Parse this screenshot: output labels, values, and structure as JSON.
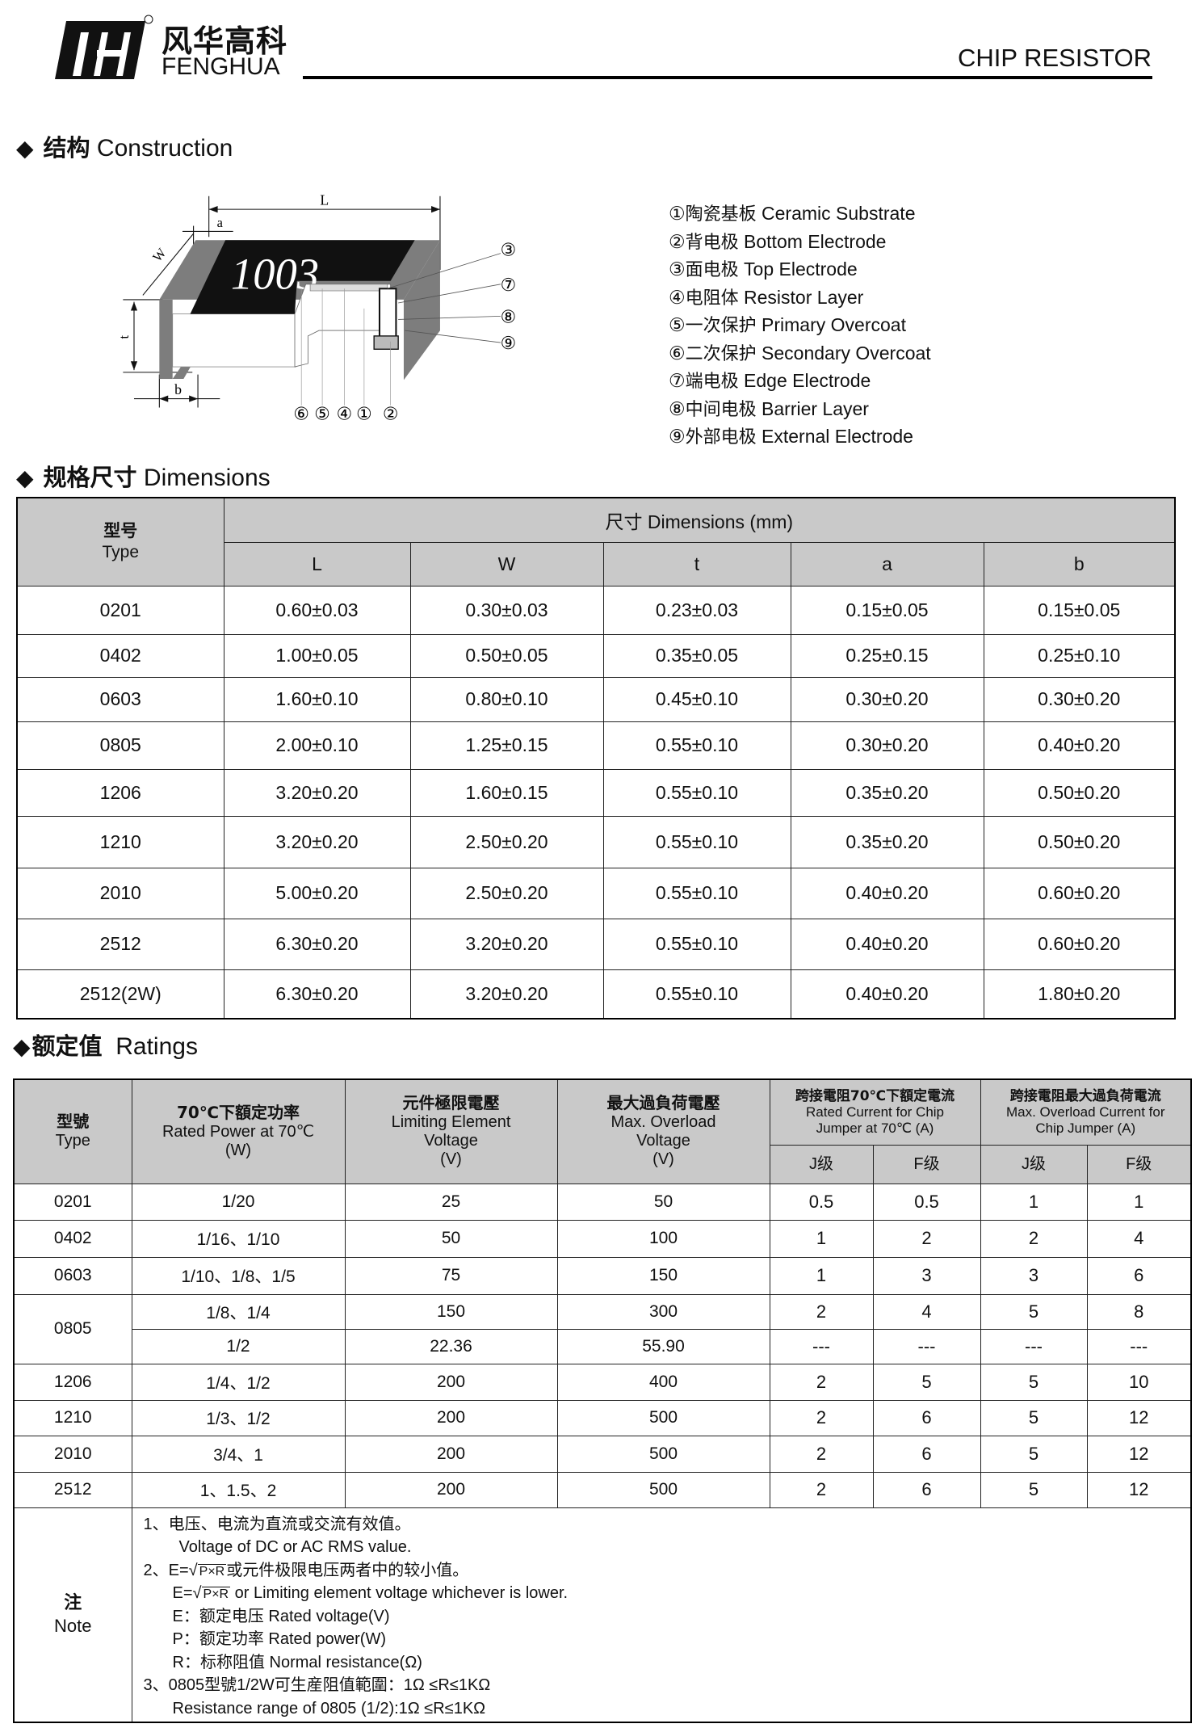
{
  "header": {
    "logo_cn": "风华高科",
    "logo_en": "FENGHUA",
    "logo_mark": "registered-trademark",
    "title": "CHIP RESISTOR"
  },
  "construction": {
    "heading_cn": "结构",
    "heading_en": "Construction",
    "diagram": {
      "marking": "1003",
      "dim_L": "L",
      "dim_W": "W",
      "dim_a": "a",
      "dim_t": "t",
      "dim_b": "b",
      "callouts_right": [
        "③",
        "⑦",
        "⑧",
        "⑨"
      ],
      "callouts_bottom": [
        "⑥",
        "⑤",
        "④",
        "①",
        "②"
      ]
    },
    "legend": [
      {
        "num": "①",
        "cn": "陶瓷基板",
        "en": "Ceramic Substrate"
      },
      {
        "num": "②",
        "cn": "背电极",
        "en": "Bottom Electrode"
      },
      {
        "num": "③",
        "cn": "面电极",
        "en": "Top Electrode"
      },
      {
        "num": "④",
        "cn": "电阻体",
        "en": "Resistor Layer"
      },
      {
        "num": "⑤",
        "cn": "一次保护",
        "en": "Primary Overcoat"
      },
      {
        "num": "⑥",
        "cn": "二次保护",
        "en": "Secondary Overcoat"
      },
      {
        "num": "⑦",
        "cn": "端电极",
        "en": "Edge Electrode"
      },
      {
        "num": "⑧",
        "cn": "中间电极",
        "en": "Barrier Layer"
      },
      {
        "num": "⑨",
        "cn": "外部电极",
        "en": "External Electrode"
      }
    ]
  },
  "dimensions": {
    "heading_cn": "规格尺寸",
    "heading_en": "Dimensions",
    "type_cn": "型号",
    "type_en": "Type",
    "group": "尺寸 Dimensions  (mm)",
    "columns": [
      "L",
      "W",
      "t",
      "a",
      "b"
    ],
    "rows": [
      [
        "0201",
        "0.60±0.03",
        "0.30±0.03",
        "0.23±0.03",
        "0.15±0.05",
        "0.15±0.05"
      ],
      [
        "0402",
        "1.00±0.05",
        "0.50±0.05",
        "0.35±0.05",
        "0.25±0.15",
        "0.25±0.10"
      ],
      [
        "0603",
        "1.60±0.10",
        "0.80±0.10",
        "0.45±0.10",
        "0.30±0.20",
        "0.30±0.20"
      ],
      [
        "0805",
        "2.00±0.10",
        "1.25±0.15",
        "0.55±0.10",
        "0.30±0.20",
        "0.40±0.20"
      ],
      [
        "1206",
        "3.20±0.20",
        "1.60±0.15",
        "0.55±0.10",
        "0.35±0.20",
        "0.50±0.20"
      ],
      [
        "1210",
        "3.20±0.20",
        "2.50±0.20",
        "0.55±0.10",
        "0.35±0.20",
        "0.50±0.20"
      ],
      [
        "2010",
        "5.00±0.20",
        "2.50±0.20",
        "0.55±0.10",
        "0.40±0.20",
        "0.60±0.20"
      ],
      [
        "2512",
        "6.30±0.20",
        "3.20±0.20",
        "0.55±0.10",
        "0.40±0.20",
        "0.60±0.20"
      ],
      [
        "2512(2W)",
        "6.30±0.20",
        "3.20±0.20",
        "0.55±0.10",
        "0.40±0.20",
        "1.80±0.20"
      ]
    ]
  },
  "ratings": {
    "heading_cn": "额定值",
    "heading_en": "Ratings",
    "headers": {
      "type_cn": "型號",
      "type_en": "Type",
      "power_cn": "70℃下額定功率",
      "power_en": "Rated Power at 70℃",
      "power_unit": "(W)",
      "lev_cn": "元件極限電壓",
      "lev_en1": "Limiting Element",
      "lev_en2": "Voltage",
      "lev_unit": "(V)",
      "mov_cn": "最大過負荷電壓",
      "mov_en1": "Max. Overload",
      "mov_en2": "Voltage",
      "mov_unit": "(V)",
      "rc_cn": "跨接電阻70℃下額定電流",
      "rc_en1": "Rated Current for Chip",
      "rc_en2": "Jumper at 70℃  (A)",
      "oc_cn": "跨接電阻最大過負荷電流",
      "oc_en1": "Max. Overload Current  for",
      "oc_en2": "Chip Jumper  (A)",
      "j": "J级",
      "f": "F级"
    },
    "rows": [
      [
        "0201",
        "1/20",
        "25",
        "50",
        "0.5",
        "0.5",
        "1",
        "1"
      ],
      [
        "0402",
        "1/16、1/10",
        "50",
        "100",
        "1",
        "2",
        "2",
        "4"
      ],
      [
        "0603",
        "1/10、1/8、1/5",
        "75",
        "150",
        "1",
        "3",
        "3",
        "6"
      ],
      [
        "0805",
        "1/8、1/4",
        "150",
        "300",
        "2",
        "4",
        "5",
        "8"
      ],
      [
        "",
        "1/2",
        "22.36",
        "55.90",
        "---",
        "---",
        "---",
        "---"
      ],
      [
        "1206",
        "1/4、1/2",
        "200",
        "400",
        "2",
        "5",
        "5",
        "10"
      ],
      [
        "1210",
        "1/3、1/2",
        "200",
        "500",
        "2",
        "6",
        "5",
        "12"
      ],
      [
        "2010",
        "3/4、1",
        "200",
        "500",
        "2",
        "6",
        "5",
        "12"
      ],
      [
        "2512",
        "1、1.5、2",
        "200",
        "500",
        "2",
        "6",
        "5",
        "12"
      ]
    ],
    "note": {
      "label_cn": "注",
      "label_en": "Note",
      "l1": "1、电压、电流为直流或交流有效值。",
      "l2": "Voltage of DC or AC RMS value.",
      "l3_pre": "2、E=",
      "sqrt": "P×R",
      "l3_post": "或元件极限电压两者中的较小值。",
      "l4_pre": "E=",
      "l4_post": " or Limiting element voltage whichever is lower.",
      "l5": "E：额定电压 Rated voltage(V)",
      "l6": "P：额定功率 Rated power(W)",
      "l7": "R：标称阻值 Normal resistance(Ω)",
      "l8": "3、0805型號1/2W可生産阻值範圍：1Ω ≤R≤1KΩ",
      "l9": "Resistance range of 0805 (1/2):1Ω ≤R≤1KΩ"
    }
  }
}
